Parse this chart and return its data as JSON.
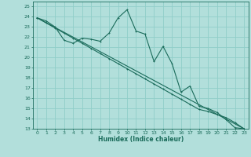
{
  "xlabel": "Humidex (Indice chaleur)",
  "bg_color": "#b2dfdb",
  "grid_color": "#80cbc4",
  "line_color": "#1a6b5a",
  "xmin": -0.5,
  "xmax": 23.5,
  "ymin": 13,
  "ymax": 25.5,
  "yticks": [
    13,
    14,
    15,
    16,
    17,
    18,
    19,
    20,
    21,
    22,
    23,
    24,
    25
  ],
  "xticks": [
    0,
    1,
    2,
    3,
    4,
    5,
    6,
    7,
    8,
    9,
    10,
    11,
    12,
    13,
    14,
    15,
    16,
    17,
    18,
    19,
    20,
    21,
    22,
    23
  ],
  "series1_x": [
    0,
    1,
    2,
    3,
    4,
    5,
    6,
    7,
    8,
    9,
    10,
    11,
    12,
    13,
    14,
    15,
    16,
    17,
    18,
    19,
    20,
    21,
    22,
    23
  ],
  "series1_y": [
    23.9,
    23.6,
    23.0,
    21.7,
    21.4,
    21.9,
    21.8,
    21.6,
    22.4,
    23.9,
    24.7,
    22.6,
    22.3,
    19.6,
    21.1,
    19.4,
    16.6,
    17.2,
    15.2,
    15.0,
    14.6,
    13.9,
    13.1,
    13.0
  ],
  "series2_x": [
    0,
    23
  ],
  "series2_y": [
    23.9,
    13.0
  ],
  "series3_x": [
    0,
    1,
    2,
    3,
    4,
    5,
    6,
    7,
    8,
    9,
    10,
    11,
    12,
    13,
    14,
    15,
    16,
    17,
    18,
    19,
    20,
    21,
    22,
    23
  ],
  "series3_y": [
    23.9,
    23.4,
    22.9,
    22.4,
    21.9,
    21.4,
    20.9,
    20.4,
    19.9,
    19.4,
    18.9,
    18.4,
    17.9,
    17.4,
    16.9,
    16.4,
    15.9,
    15.4,
    14.9,
    14.7,
    14.4,
    14.1,
    13.6,
    13.0
  ]
}
